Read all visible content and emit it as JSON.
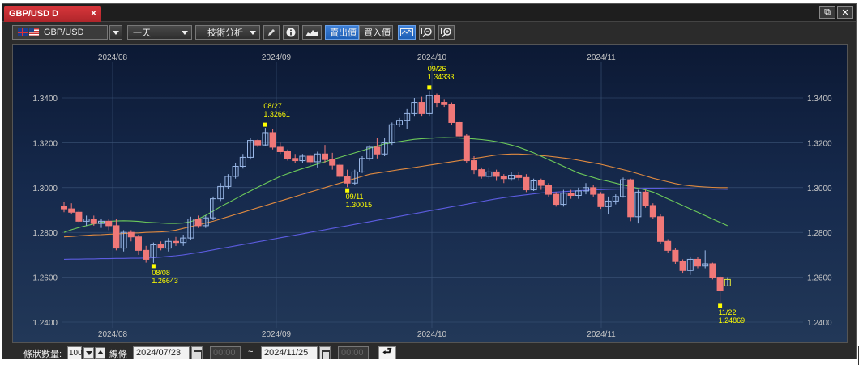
{
  "window": {
    "tab_title": "GBP/USD D",
    "tab_close_glyph": "×",
    "restore_glyph": "⧉",
    "close_glyph": "✕"
  },
  "toolbar": {
    "symbol": "GBP/USD",
    "symbol_icon": "uk-us-flag-icon",
    "period": "一天",
    "analysis_menu": "技術分析",
    "sell_price": "賣出價",
    "buy_price": "買入價",
    "icons": [
      "pencil-icon",
      "info-icon",
      "mountain-chart-icon",
      "line-chart-icon",
      "zoom-out-icon",
      "zoom-in-icon"
    ]
  },
  "footer": {
    "bar_count_label": "條狀數量:",
    "bar_count_value": "100",
    "line_label": "線條",
    "start_date": "2024/07/23",
    "start_time": "00:00",
    "range_sep": "~",
    "end_date": "2024/11/25",
    "end_time": "00:00"
  },
  "chart_data": {
    "type": "candlestick",
    "symbol": "GBP/USD",
    "timeframe": "D",
    "x_ticks": [
      "2024/08",
      "2024/09",
      "2024/10",
      "2024/11"
    ],
    "y_ticks": [
      "1.2400",
      "1.2600",
      "1.2800",
      "1.3000",
      "1.3200",
      "1.3400"
    ],
    "ylim": [
      1.24,
      1.35
    ],
    "grid": true,
    "colors": {
      "up": "#9ab8e8",
      "down": "#f07878",
      "ma_short": "#6dcb5a",
      "ma_mid": "#e08a40",
      "ma_long": "#5c5ce0",
      "annotation": "#ffff00"
    },
    "annotations": [
      {
        "date": "08/08",
        "value": "1.26643",
        "index": 12
      },
      {
        "date": "08/27",
        "value": "1.32661",
        "index": 27
      },
      {
        "date": "09/11",
        "value": "1.30015",
        "index": 38
      },
      {
        "date": "09/26",
        "value": "1.34333",
        "index": 49
      },
      {
        "date": "11/22",
        "value": "1.24869",
        "index": 88
      }
    ],
    "candles": [
      [
        1.2915,
        1.2935,
        1.289,
        1.2905
      ],
      [
        1.2905,
        1.293,
        1.288,
        1.289
      ],
      [
        1.289,
        1.29,
        1.284,
        1.285
      ],
      [
        1.285,
        1.2875,
        1.283,
        1.286
      ],
      [
        1.286,
        1.2875,
        1.283,
        1.284
      ],
      [
        1.284,
        1.286,
        1.282,
        1.285
      ],
      [
        1.285,
        1.286,
        1.281,
        1.283
      ],
      [
        1.283,
        1.286,
        1.272,
        1.273
      ],
      [
        1.273,
        1.281,
        1.2715,
        1.28
      ],
      [
        1.28,
        1.281,
        1.276,
        1.278
      ],
      [
        1.278,
        1.279,
        1.27,
        1.272
      ],
      [
        1.272,
        1.274,
        1.2665,
        1.268
      ],
      [
        1.269,
        1.2755,
        1.2664,
        1.2745
      ],
      [
        1.2745,
        1.276,
        1.272,
        1.273
      ],
      [
        1.273,
        1.2775,
        1.2715,
        1.276
      ],
      [
        1.276,
        1.278,
        1.274,
        1.2755
      ],
      [
        1.2755,
        1.279,
        1.274,
        1.2775
      ],
      [
        1.2775,
        1.287,
        1.2765,
        1.286
      ],
      [
        1.286,
        1.2875,
        1.282,
        1.283
      ],
      [
        1.283,
        1.2875,
        1.282,
        1.2865
      ],
      [
        1.2865,
        1.296,
        1.2855,
        1.295
      ],
      [
        1.295,
        1.302,
        1.294,
        1.3005
      ],
      [
        1.3005,
        1.306,
        1.2995,
        1.305
      ],
      [
        1.305,
        1.311,
        1.304,
        1.3095
      ],
      [
        1.3095,
        1.315,
        1.3085,
        1.3135
      ],
      [
        1.3135,
        1.322,
        1.3125,
        1.321
      ],
      [
        1.321,
        1.3215,
        1.318,
        1.319
      ],
      [
        1.319,
        1.3266,
        1.3185,
        1.3245
      ],
      [
        1.3245,
        1.326,
        1.317,
        1.318
      ],
      [
        1.318,
        1.32,
        1.315,
        1.316
      ],
      [
        1.316,
        1.317,
        1.312,
        1.313
      ],
      [
        1.313,
        1.315,
        1.311,
        1.312
      ],
      [
        1.312,
        1.315,
        1.311,
        1.314
      ],
      [
        1.314,
        1.315,
        1.31,
        1.3115
      ],
      [
        1.3115,
        1.316,
        1.309,
        1.315
      ],
      [
        1.315,
        1.319,
        1.311,
        1.3125
      ],
      [
        1.3125,
        1.3155,
        1.308,
        1.31
      ],
      [
        1.31,
        1.311,
        1.304,
        1.305
      ],
      [
        1.305,
        1.308,
        1.3002,
        1.302
      ],
      [
        1.302,
        1.308,
        1.301,
        1.307
      ],
      [
        1.307,
        1.314,
        1.3065,
        1.313
      ],
      [
        1.313,
        1.319,
        1.312,
        1.318
      ],
      [
        1.318,
        1.322,
        1.313,
        1.315
      ],
      [
        1.315,
        1.322,
        1.314,
        1.32
      ],
      [
        1.32,
        1.329,
        1.319,
        1.328
      ],
      [
        1.328,
        1.331,
        1.327,
        1.33
      ],
      [
        1.33,
        1.335,
        1.326,
        1.333
      ],
      [
        1.333,
        1.34,
        1.332,
        1.338
      ],
      [
        1.338,
        1.3405,
        1.332,
        1.333
      ],
      [
        1.333,
        1.3433,
        1.332,
        1.341
      ],
      [
        1.341,
        1.342,
        1.336,
        1.338
      ],
      [
        1.338,
        1.3395,
        1.336,
        1.337
      ],
      [
        1.337,
        1.338,
        1.328,
        1.329
      ],
      [
        1.329,
        1.33,
        1.322,
        1.323
      ],
      [
        1.323,
        1.324,
        1.311,
        1.312
      ],
      [
        1.312,
        1.314,
        1.306,
        1.308
      ],
      [
        1.308,
        1.309,
        1.304,
        1.305
      ],
      [
        1.305,
        1.309,
        1.304,
        1.307
      ],
      [
        1.307,
        1.308,
        1.303,
        1.305
      ],
      [
        1.305,
        1.306,
        1.302,
        1.304
      ],
      [
        1.304,
        1.307,
        1.303,
        1.3055
      ],
      [
        1.3055,
        1.307,
        1.303,
        1.3045
      ],
      [
        1.3045,
        1.306,
        1.298,
        1.299
      ],
      [
        1.299,
        1.304,
        1.2985,
        1.303
      ],
      [
        1.303,
        1.304,
        1.299,
        1.301
      ],
      [
        1.301,
        1.302,
        1.296,
        1.297
      ],
      [
        1.297,
        1.298,
        1.2915,
        1.2925
      ],
      [
        1.2925,
        1.299,
        1.2915,
        1.2975
      ],
      [
        1.2975,
        1.299,
        1.295,
        1.2965
      ],
      [
        1.2965,
        1.3,
        1.295,
        1.2985
      ],
      [
        1.2985,
        1.302,
        1.297,
        1.3
      ],
      [
        1.3,
        1.301,
        1.296,
        1.297
      ],
      [
        1.297,
        1.298,
        1.2905,
        1.2915
      ],
      [
        1.2915,
        1.296,
        1.288,
        1.294
      ],
      [
        1.294,
        1.297,
        1.2925,
        1.296
      ],
      [
        1.296,
        1.3045,
        1.2955,
        1.3035
      ],
      [
        1.3035,
        1.304,
        1.285,
        1.287
      ],
      [
        1.287,
        1.299,
        1.284,
        1.298
      ],
      [
        1.298,
        1.299,
        1.291,
        1.292
      ],
      [
        1.292,
        1.293,
        1.286,
        1.287
      ],
      [
        1.287,
        1.288,
        1.275,
        1.276
      ],
      [
        1.276,
        1.277,
        1.271,
        1.272
      ],
      [
        1.272,
        1.273,
        1.266,
        1.267
      ],
      [
        1.267,
        1.268,
        1.262,
        1.263
      ],
      [
        1.263,
        1.269,
        1.261,
        1.268
      ],
      [
        1.268,
        1.269,
        1.264,
        1.265
      ],
      [
        1.265,
        1.272,
        1.264,
        1.266
      ],
      [
        1.266,
        1.2665,
        1.259,
        1.26
      ],
      [
        1.26,
        1.2605,
        1.2487,
        1.254
      ],
      [
        1.258,
        1.26,
        1.256,
        1.259
      ]
    ],
    "ma_short": [
      1.28,
      1.2812,
      1.2822,
      1.283,
      1.2838,
      1.2845,
      1.2849,
      1.2851,
      1.2852,
      1.2851,
      1.2849,
      1.2846,
      1.2844,
      1.2842,
      1.284,
      1.284,
      1.2842,
      1.2848,
      1.286,
      1.2876,
      1.2895,
      1.2915,
      1.2932,
      1.295,
      1.2968,
      1.2985,
      1.3002,
      1.3018,
      1.3034,
      1.305,
      1.3062,
      1.3074,
      1.3085,
      1.3095,
      1.3105,
      1.3115,
      1.3125,
      1.3135,
      1.3145,
      1.3155,
      1.3165,
      1.3175,
      1.3185,
      1.3195,
      1.32,
      1.3205,
      1.321,
      1.3215,
      1.3218,
      1.322,
      1.3222,
      1.3223,
      1.3222,
      1.3221,
      1.3219,
      1.3217,
      1.3214,
      1.321,
      1.3205,
      1.3198,
      1.319,
      1.318,
      1.3168,
      1.3155,
      1.314,
      1.3125,
      1.311,
      1.3095,
      1.308,
      1.3065,
      1.3055,
      1.3045,
      1.3035,
      1.3028,
      1.302,
      1.3012,
      1.3005,
      1.2997,
      1.299,
      1.298,
      1.2965,
      1.295,
      1.2935,
      1.292,
      1.2905,
      1.289,
      1.2875,
      1.286,
      1.2845,
      1.283
    ],
    "ma_mid": [
      1.278,
      1.2782,
      1.2785,
      1.2787,
      1.2789,
      1.279,
      1.2792,
      1.2793,
      1.2795,
      1.2797,
      1.2798,
      1.28,
      1.2801,
      1.2802,
      1.2805,
      1.281,
      1.2818,
      1.2826,
      1.2834,
      1.2842,
      1.285,
      1.286,
      1.287,
      1.288,
      1.289,
      1.29,
      1.291,
      1.292,
      1.293,
      1.294,
      1.295,
      1.296,
      1.297,
      1.298,
      1.299,
      1.3,
      1.301,
      1.302,
      1.303,
      1.304,
      1.305,
      1.306,
      1.3065,
      1.307,
      1.3075,
      1.308,
      1.3085,
      1.309,
      1.3095,
      1.31,
      1.3105,
      1.311,
      1.3115,
      1.312,
      1.3125,
      1.313,
      1.3135,
      1.314,
      1.3145,
      1.3148,
      1.315,
      1.315,
      1.3148,
      1.3146,
      1.3143,
      1.314,
      1.3136,
      1.3132,
      1.3128,
      1.3122,
      1.3116,
      1.311,
      1.3104,
      1.3096,
      1.3088,
      1.308,
      1.3072,
      1.3062,
      1.3052,
      1.3042,
      1.3034,
      1.3026,
      1.3018,
      1.3012,
      1.3008,
      1.3005,
      1.3003,
      1.3001,
      1.3,
      1.3
    ],
    "ma_long": [
      1.268,
      1.2681,
      1.2681,
      1.2682,
      1.2682,
      1.2683,
      1.2683,
      1.2684,
      1.2684,
      1.2685,
      1.2685,
      1.2686,
      1.2687,
      1.269,
      1.2693,
      1.2696,
      1.27,
      1.2705,
      1.271,
      1.2716,
      1.2722,
      1.2728,
      1.2734,
      1.274,
      1.2746,
      1.2752,
      1.2758,
      1.2764,
      1.277,
      1.2776,
      1.2782,
      1.2788,
      1.2794,
      1.28,
      1.2806,
      1.2812,
      1.2818,
      1.2824,
      1.283,
      1.2836,
      1.2842,
      1.2848,
      1.2854,
      1.286,
      1.2866,
      1.2872,
      1.2878,
      1.2884,
      1.289,
      1.2896,
      1.2902,
      1.2908,
      1.2914,
      1.292,
      1.2926,
      1.2932,
      1.2938,
      1.2944,
      1.295,
      1.2955,
      1.296,
      1.2964,
      1.2968,
      1.2972,
      1.2976,
      1.2978,
      1.298,
      1.2982,
      1.2984,
      1.2986,
      1.2988,
      1.299,
      1.2991,
      1.2992,
      1.2993,
      1.2994,
      1.2995,
      1.2996,
      1.2997,
      1.2997,
      1.2997,
      1.2996,
      1.2996,
      1.2995,
      1.2995,
      1.2994,
      1.2994,
      1.2993,
      1.2993,
      1.2992
    ]
  }
}
